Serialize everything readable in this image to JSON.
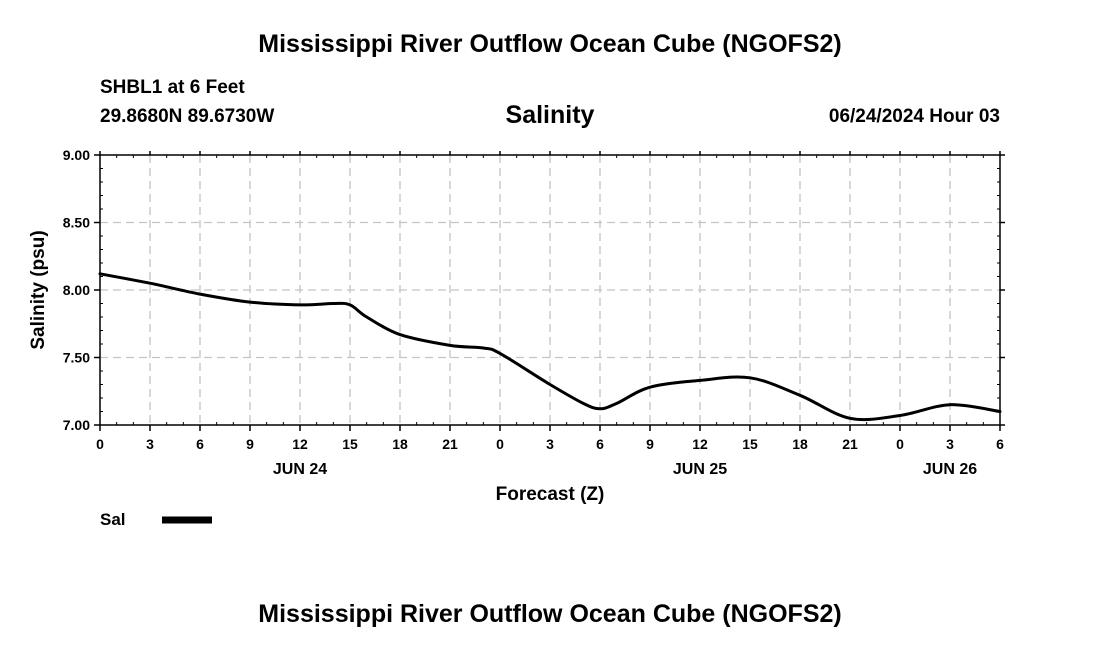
{
  "header": {
    "title": "Mississippi River Outflow Ocean Cube (NGOFS2)",
    "station": "SHBL1 at 6 Feet",
    "coords": "29.8680N  89.6730W",
    "subtitle": "Salinity",
    "datetime": "06/24/2024 Hour 03"
  },
  "footer": {
    "title": "Mississippi River Outflow Ocean Cube (NGOFS2)"
  },
  "chart_data": {
    "type": "line",
    "title": "Salinity",
    "xlabel": "Forecast (Z)",
    "ylabel": "Salinity (psu)",
    "ylim": [
      7.0,
      9.0
    ],
    "xlim": [
      0,
      54
    ],
    "yticks": [
      7.0,
      7.5,
      8.0,
      8.5,
      9.0
    ],
    "ytick_labels": [
      "7.00",
      "7.50",
      "8.00",
      "8.50",
      "9.00"
    ],
    "xtick_values": [
      0,
      3,
      6,
      9,
      12,
      15,
      18,
      21,
      24,
      27,
      30,
      33,
      36,
      39,
      42,
      45,
      48,
      51,
      54
    ],
    "xtick_labels": [
      "0",
      "3",
      "6",
      "9",
      "12",
      "15",
      "18",
      "21",
      "0",
      "3",
      "6",
      "9",
      "12",
      "15",
      "18",
      "21",
      "0",
      "3",
      "6"
    ],
    "day_labels": [
      {
        "label": "JUN 24",
        "at": 12
      },
      {
        "label": "JUN 25",
        "at": 36
      },
      {
        "label": "JUN 26",
        "at": 51
      }
    ],
    "grid": true,
    "legend": {
      "label": "Sal",
      "placement": "bottom-left"
    },
    "series": [
      {
        "name": "Sal",
        "x": [
          0,
          3,
          6,
          9,
          12,
          14,
          15,
          16,
          18,
          21,
          23,
          24,
          27,
          29,
          30,
          31,
          33,
          36,
          39,
          42,
          45,
          48,
          51,
          54
        ],
        "values": [
          8.12,
          8.05,
          7.97,
          7.91,
          7.89,
          7.9,
          7.89,
          7.8,
          7.67,
          7.59,
          7.57,
          7.53,
          7.3,
          7.16,
          7.12,
          7.16,
          7.28,
          7.33,
          7.35,
          7.22,
          7.05,
          7.07,
          7.15,
          7.1
        ]
      }
    ]
  }
}
